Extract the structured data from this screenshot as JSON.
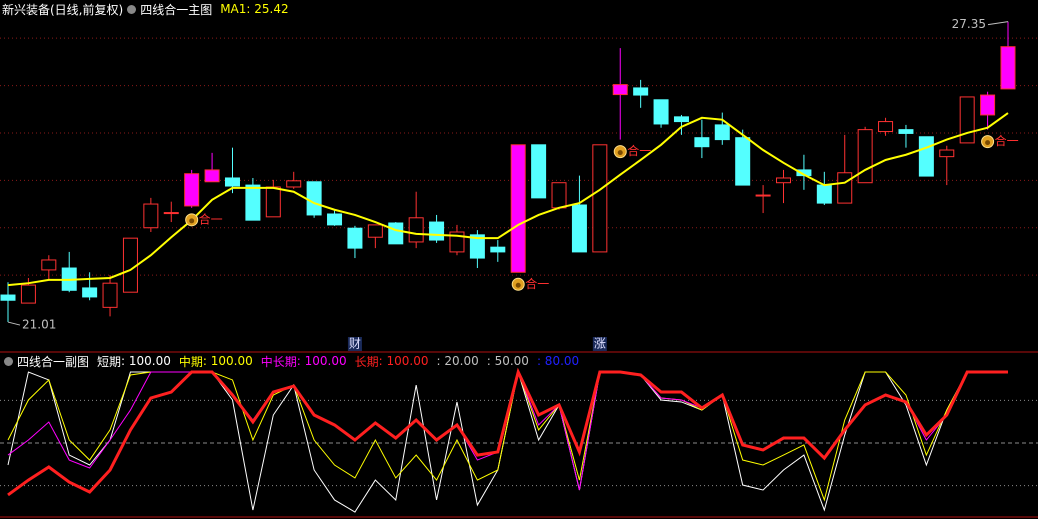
{
  "chart_data": [
    {
      "type": "candlestick",
      "title": "新兴装备(日线,前复权)",
      "subtitle": "四线合一主图",
      "categories": [
        null,
        null,
        null,
        null,
        null,
        null,
        null,
        null,
        null,
        null,
        null,
        null,
        null,
        null,
        null,
        null,
        null,
        null,
        null,
        null,
        null,
        null,
        null,
        null,
        null,
        null,
        null,
        null,
        null,
        null,
        null,
        null,
        null,
        null,
        null,
        null,
        null,
        null,
        null,
        null,
        null,
        null,
        null,
        null,
        null,
        null,
        null,
        null,
        null,
        null
      ],
      "open": [
        21.58,
        21.41,
        22.11,
        22.15,
        21.73,
        21.32,
        21.64,
        23.0,
        23.32,
        23.46,
        23.97,
        24.05,
        23.9,
        23.23,
        23.86,
        23.97,
        23.29,
        22.99,
        22.8,
        23.1,
        22.7,
        23.12,
        22.49,
        22.85,
        22.59,
        22.06,
        24.75,
        23.42,
        23.48,
        22.49,
        25.81,
        25.95,
        25.7,
        25.34,
        24.9,
        25.17,
        24.9,
        23.69,
        23.95,
        24.22,
        23.9,
        23.52,
        23.95,
        25.03,
        25.07,
        24.92,
        24.5,
        24.79,
        25.38,
        25.93
      ],
      "close": [
        21.47,
        21.79,
        22.32,
        21.68,
        21.54,
        21.83,
        22.78,
        23.5,
        23.32,
        24.14,
        24.22,
        23.88,
        23.16,
        23.86,
        23.99,
        23.27,
        23.06,
        22.57,
        23.06,
        22.66,
        23.21,
        22.74,
        22.91,
        22.36,
        22.49,
        24.75,
        23.63,
        23.95,
        22.49,
        24.75,
        26.02,
        25.8,
        25.19,
        25.24,
        24.71,
        24.86,
        23.9,
        23.69,
        24.05,
        24.1,
        23.52,
        24.16,
        25.07,
        25.24,
        24.99,
        24.09,
        24.64,
        25.76,
        25.8,
        26.82
      ],
      "high": [
        21.85,
        21.94,
        22.42,
        22.49,
        22.06,
        22.0,
        22.78,
        23.63,
        23.55,
        24.22,
        24.58,
        24.69,
        24.05,
        24.01,
        24.18,
        23.97,
        23.38,
        23.04,
        23.06,
        23.12,
        23.76,
        23.27,
        23.06,
        22.95,
        22.74,
        24.75,
        24.75,
        23.95,
        24.1,
        24.75,
        26.79,
        26.12,
        25.7,
        25.38,
        25.28,
        25.43,
        25.07,
        23.9,
        24.22,
        24.54,
        24.18,
        24.96,
        25.13,
        25.32,
        25.17,
        24.92,
        24.73,
        25.76,
        25.87,
        27.35
      ],
      "low": [
        21.01,
        21.41,
        21.9,
        21.64,
        21.47,
        21.13,
        21.64,
        22.91,
        23.12,
        23.42,
        23.97,
        23.73,
        23.16,
        23.23,
        23.82,
        23.21,
        23.04,
        22.36,
        22.57,
        22.66,
        22.57,
        22.68,
        22.42,
        22.15,
        22.28,
        22.06,
        23.63,
        23.38,
        22.49,
        22.49,
        24.86,
        25.53,
        25.11,
        24.96,
        24.47,
        24.75,
        23.9,
        23.31,
        23.52,
        23.8,
        23.48,
        23.52,
        23.95,
        24.94,
        24.69,
        24.09,
        23.9,
        24.79,
        25.07,
        25.93
      ],
      "ylim": [
        20.8,
        27.7
      ],
      "yticks": [
        22,
        23,
        24,
        25,
        26,
        27
      ],
      "grid": true,
      "up_color": "#ff3232",
      "down_color": "#54ffff",
      "highlight_color": "#ff00ff",
      "highlight_candles": [
        9,
        10,
        25,
        30,
        48,
        49
      ],
      "ma": {
        "name": "MA1",
        "value_label": ": 25.42",
        "color": "#ffff00",
        "values": [
          21.79,
          21.83,
          21.9,
          21.9,
          21.92,
          21.94,
          22.11,
          22.42,
          22.8,
          23.16,
          23.59,
          23.84,
          23.84,
          23.84,
          23.76,
          23.52,
          23.38,
          23.27,
          23.12,
          22.95,
          22.87,
          22.85,
          22.83,
          22.78,
          22.78,
          23.06,
          23.27,
          23.42,
          23.52,
          23.8,
          24.12,
          24.43,
          24.75,
          25.13,
          25.32,
          25.28,
          24.96,
          24.64,
          24.37,
          24.12,
          23.9,
          23.95,
          24.22,
          24.43,
          24.54,
          24.69,
          24.86,
          25.0,
          25.11,
          25.42
        ]
      },
      "extremes": [
        {
          "value": 27.35,
          "label": "27.35"
        },
        {
          "value": 21.01,
          "label": "21.01"
        }
      ],
      "signals": [
        null,
        null,
        null,
        null,
        null,
        null,
        null,
        null,
        null,
        "合一",
        null,
        null,
        null,
        null,
        null,
        null,
        null,
        null,
        null,
        null,
        null,
        null,
        null,
        null,
        null,
        "合一",
        null,
        null,
        null,
        null,
        "合一",
        null,
        null,
        null,
        null,
        null,
        null,
        null,
        null,
        null,
        null,
        null,
        null,
        null,
        null,
        null,
        null,
        null,
        "合一",
        null
      ],
      "events": [
        null,
        null,
        null,
        null,
        null,
        null,
        null,
        null,
        null,
        null,
        null,
        null,
        null,
        null,
        null,
        null,
        null,
        "财",
        null,
        null,
        null,
        null,
        null,
        null,
        null,
        null,
        null,
        null,
        null,
        "涨",
        null,
        null,
        null,
        null,
        null,
        null,
        null,
        null,
        null,
        null,
        null,
        null,
        null,
        null,
        null,
        null,
        null,
        null,
        null,
        null
      ]
    },
    {
      "type": "line",
      "title": "四线合一副图",
      "categories": [
        null,
        null,
        null,
        null,
        null,
        null,
        null,
        null,
        null,
        null,
        null,
        null,
        null,
        null,
        null,
        null,
        null,
        null,
        null,
        null,
        null,
        null,
        null,
        null,
        null,
        null,
        null,
        null,
        null,
        null,
        null,
        null,
        null,
        null,
        null,
        null,
        null,
        null,
        null,
        null,
        null,
        null,
        null,
        null,
        null,
        null,
        null,
        null,
        null,
        null
      ],
      "ylim": [
        0,
        100
      ],
      "series": [
        {
          "name": "短期",
          "legend_value": ": 100.00",
          "color": "#ffffff",
          "values": [
            34.5,
            100,
            94.4,
            41.5,
            34.5,
            52.1,
            100,
            100,
            100,
            100,
            100,
            80.3,
            2.8,
            69.7,
            90.8,
            31.0,
            9.9,
            1.4,
            23.9,
            9.9,
            90.8,
            9.9,
            78.9,
            6.3,
            31.0,
            100,
            52.1,
            76.8,
            16.9,
            100,
            100,
            97.9,
            80.3,
            78.9,
            73.2,
            83.8,
            20.4,
            16.9,
            31.0,
            41.5,
            2.8,
            55.6,
            100,
            100,
            76.8,
            34.5,
            73.2,
            100,
            100,
            100
          ]
        },
        {
          "name": "中期",
          "legend_value": ": 100.00",
          "color": "#ffff00",
          "values": [
            52.1,
            80.3,
            94.4,
            52.1,
            38.0,
            59.2,
            97.9,
            100,
            100,
            100,
            100,
            94.4,
            52.1,
            83.8,
            90.8,
            52.1,
            34.5,
            25.4,
            52.1,
            25.4,
            41.5,
            23.9,
            52.1,
            23.9,
            31.0,
            100,
            59.2,
            76.8,
            23.9,
            100,
            100,
            97.9,
            81.7,
            80.3,
            73.2,
            83.8,
            38.0,
            34.5,
            41.5,
            48.6,
            9.9,
            66.2,
            100,
            100,
            83.8,
            41.5,
            73.2,
            100,
            100,
            100
          ]
        },
        {
          "name": "中长期",
          "legend_value": ": 100.00",
          "color": "#ff00ff",
          "values": [
            41.5,
            52.1,
            64.8,
            38.0,
            32.4,
            52.1,
            73.2,
            100,
            100,
            100,
            100,
            83.8,
            66.2,
            85.9,
            90.1,
            69.7,
            62.7,
            52.1,
            64.1,
            53.5,
            66.2,
            52.1,
            62.7,
            38.0,
            43.7,
            100,
            62.7,
            76.8,
            16.9,
            100,
            100,
            97.9,
            81.7,
            80.3,
            74.6,
            83.8,
            48.6,
            45.1,
            53.5,
            53.5,
            39.4,
            59.2,
            76.8,
            83.8,
            78.9,
            52.1,
            69.7,
            100,
            100,
            100
          ]
        },
        {
          "name": "长期",
          "legend_value": ": 100.00",
          "color": "#ff2020",
          "values": [
            13.4,
            23.9,
            33.1,
            22.5,
            15.5,
            31.0,
            59.2,
            81.7,
            85.9,
            100,
            100,
            83.8,
            64.8,
            85.9,
            90.1,
            69.7,
            62.7,
            52.1,
            64.1,
            53.5,
            66.2,
            52.1,
            62.7,
            41.5,
            43.7,
            100,
            69.7,
            76.8,
            43.7,
            100,
            100,
            97.9,
            85.9,
            85.9,
            74.6,
            83.8,
            48.6,
            45.1,
            53.5,
            53.5,
            39.4,
            59.2,
            76.8,
            83.8,
            78.9,
            55.6,
            69.7,
            100,
            100,
            100
          ]
        }
      ],
      "levels": [
        {
          "value": 20,
          "label": ": 20.00",
          "color": "#c0c0c0"
        },
        {
          "value": 50,
          "label": ": 50.00",
          "color": "#c0c0c0"
        },
        {
          "value": 80,
          "label": ": 80.00",
          "color": "#2020ff"
        }
      ]
    }
  ]
}
